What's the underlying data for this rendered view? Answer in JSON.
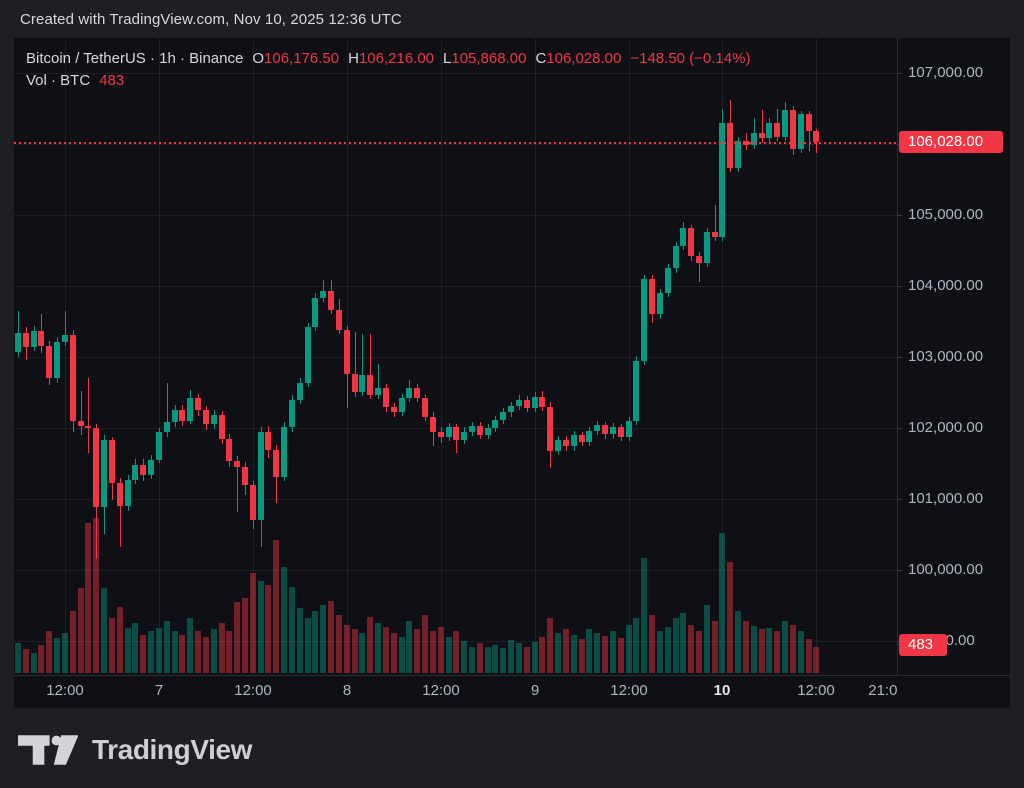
{
  "header": {
    "created_text": "Created with TradingView.com, Nov 10, 2025 12:36 UTC"
  },
  "legend": {
    "symbol_title": "Bitcoin / TetherUS · 1h · Binance",
    "o_label": "O",
    "o_val": "106,176.50",
    "h_label": "H",
    "h_val": "106,216.00",
    "l_label": "L",
    "l_val": "105,868.00",
    "c_label": "C",
    "c_val": "106,028.00",
    "change": "−148.50 (−0.14%)",
    "vol_label": "Vol · BTC",
    "vol_val": "483"
  },
  "badges": {
    "last_price": "106,028.00",
    "volume": "483"
  },
  "footer": {
    "brand": "TradingView"
  },
  "colors": {
    "up": "#089981",
    "down": "#f23645",
    "vol_up": "rgba(8,153,129,0.45)",
    "vol_down": "rgba(242,54,69,0.45)",
    "badge_bg": "#f23645",
    "axis_text": "#b2b5be",
    "chart_bg": "#0e1015",
    "page_bg": "#1e1f24"
  },
  "price_axis": {
    "labels": [
      {
        "price": 107000,
        "text": "107,000.00"
      },
      {
        "price": 106000,
        "text": "106,000.00"
      },
      {
        "price": 105000,
        "text": "105,000.00"
      },
      {
        "price": 104000,
        "text": "104,000.00"
      },
      {
        "price": 103000,
        "text": "103,000.00"
      },
      {
        "price": 102000,
        "text": "102,000.00"
      },
      {
        "price": 101000,
        "text": "101,000.00"
      },
      {
        "price": 100000,
        "text": "100,000.00"
      },
      {
        "price": 99000,
        "text": "99,000.00"
      }
    ]
  },
  "time_axis": {
    "ticks": [
      {
        "i": 6,
        "label": "12:00",
        "bold": false,
        "grid": true
      },
      {
        "i": 18,
        "label": "7",
        "bold": false,
        "grid": true
      },
      {
        "i": 30,
        "label": "12:00",
        "bold": false,
        "grid": true
      },
      {
        "i": 42,
        "label": "8",
        "bold": false,
        "grid": true
      },
      {
        "i": 54,
        "label": "12:00",
        "bold": false,
        "grid": true
      },
      {
        "i": 66,
        "label": "9",
        "bold": false,
        "grid": true
      },
      {
        "i": 78,
        "label": "12:00",
        "bold": false,
        "grid": true
      },
      {
        "i": 90,
        "label": "10",
        "bold": true,
        "grid": true
      },
      {
        "i": 102,
        "label": "12:00",
        "bold": false,
        "grid": true
      },
      {
        "i": 111,
        "label": "21:00",
        "bold": false,
        "grid": false
      }
    ]
  },
  "chart_data": {
    "type": "candlestick",
    "symbol": "Bitcoin / TetherUS",
    "exchange": "Binance",
    "interval": "1h",
    "last_price": 106028,
    "last_volume_btc": 483,
    "ohlc_current": {
      "open": 106176.5,
      "high": 106216,
      "low": 105868,
      "close": 106028,
      "change": -148.5,
      "change_pct": -0.14
    },
    "price_range_shown": [
      99000,
      107000
    ],
    "note": "candles = [open, high, low, close, volume_btc], hourly Nov 6 06:00 - Nov 10 12:00 UTC",
    "candles": [
      [
        103070,
        103650,
        103000,
        103340,
        558
      ],
      [
        103340,
        103420,
        102960,
        103140,
        446
      ],
      [
        103140,
        103430,
        103080,
        103360,
        372
      ],
      [
        103360,
        103600,
        103060,
        103150,
        521
      ],
      [
        103150,
        103230,
        102600,
        102700,
        781
      ],
      [
        102700,
        103280,
        102640,
        103210,
        651
      ],
      [
        103210,
        103650,
        103150,
        103310,
        744
      ],
      [
        103310,
        103380,
        101950,
        102105,
        1153
      ],
      [
        102105,
        102520,
        101900,
        102035,
        1581
      ],
      [
        102035,
        102700,
        101650,
        102000,
        2790
      ],
      [
        102000,
        102050,
        100150,
        100885,
        2883
      ],
      [
        100885,
        101900,
        100500,
        101825,
        1581
      ],
      [
        101825,
        101870,
        100980,
        101220,
        1023
      ],
      [
        101220,
        101300,
        100330,
        100900,
        1228
      ],
      [
        100900,
        101340,
        100830,
        101270,
        837
      ],
      [
        101270,
        101560,
        101210,
        101480,
        930
      ],
      [
        101480,
        101560,
        101260,
        101340,
        707
      ],
      [
        101340,
        101620,
        101280,
        101550,
        781
      ],
      [
        101550,
        102000,
        101500,
        101940,
        837
      ],
      [
        101940,
        102630,
        101880,
        102090,
        967
      ],
      [
        102090,
        102320,
        102020,
        102250,
        781
      ],
      [
        102250,
        102330,
        102030,
        102100,
        707
      ],
      [
        102100,
        102540,
        102050,
        102420,
        1023
      ],
      [
        102420,
        102480,
        102170,
        102250,
        781
      ],
      [
        102250,
        102310,
        101970,
        102050,
        670
      ],
      [
        102050,
        102250,
        101990,
        102180,
        818
      ],
      [
        102180,
        102240,
        101770,
        101850,
        930
      ],
      [
        101850,
        101910,
        101450,
        101540,
        781
      ],
      [
        101540,
        101600,
        100810,
        101450,
        1321
      ],
      [
        101450,
        101520,
        101060,
        101200,
        1395
      ],
      [
        101200,
        101260,
        100580,
        100700,
        1860
      ],
      [
        100700,
        102020,
        100330,
        101950,
        1711
      ],
      [
        101950,
        102030,
        101580,
        101690,
        1637
      ],
      [
        101690,
        101760,
        100950,
        101310,
        2474
      ],
      [
        101310,
        102080,
        101250,
        102010,
        1972
      ],
      [
        102010,
        102460,
        101950,
        102400,
        1600
      ],
      [
        102400,
        102700,
        102340,
        102640,
        1209
      ],
      [
        102640,
        103480,
        102580,
        103420,
        1023
      ],
      [
        103420,
        103900,
        103360,
        103830,
        1153
      ],
      [
        103830,
        104085,
        103770,
        103930,
        1265
      ],
      [
        103930,
        104085,
        103600,
        103660,
        1339
      ],
      [
        103660,
        103815,
        103320,
        103380,
        1079
      ],
      [
        103380,
        103440,
        102285,
        102760,
        893
      ],
      [
        102760,
        103350,
        102440,
        102500,
        818
      ],
      [
        102500,
        103330,
        102450,
        102740,
        744
      ],
      [
        102740,
        103320,
        102410,
        102470,
        1042
      ],
      [
        102470,
        102900,
        102410,
        102560,
        930
      ],
      [
        102560,
        102620,
        102230,
        102290,
        856
      ],
      [
        102290,
        102350,
        102160,
        102230,
        744
      ],
      [
        102230,
        102480,
        102170,
        102420,
        670
      ],
      [
        102420,
        102680,
        102360,
        102560,
        967
      ],
      [
        102560,
        102620,
        102360,
        102420,
        818
      ],
      [
        102420,
        102470,
        102100,
        102160,
        1079
      ],
      [
        102160,
        102220,
        101740,
        101950,
        781
      ],
      [
        101950,
        102010,
        101790,
        101870,
        856
      ],
      [
        101870,
        102070,
        101810,
        102010,
        670
      ],
      [
        102010,
        102060,
        101650,
        101830,
        781
      ],
      [
        101830,
        102010,
        101770,
        101950,
        595
      ],
      [
        101950,
        102090,
        101890,
        102030,
        484
      ],
      [
        102030,
        102080,
        101840,
        101900,
        558
      ],
      [
        101900,
        102060,
        101840,
        102000,
        484
      ],
      [
        102000,
        102170,
        101940,
        102110,
        521
      ],
      [
        102110,
        102280,
        102050,
        102220,
        465
      ],
      [
        102220,
        102370,
        102160,
        102310,
        614
      ],
      [
        102310,
        102460,
        102250,
        102400,
        558
      ],
      [
        102400,
        102450,
        102220,
        102280,
        484
      ],
      [
        102280,
        102500,
        102220,
        102430,
        577
      ],
      [
        102430,
        102520,
        102240,
        102300,
        670
      ],
      [
        102300,
        102360,
        101440,
        101680,
        1023
      ],
      [
        101680,
        101890,
        101620,
        101830,
        744
      ],
      [
        101830,
        101890,
        101680,
        101740,
        818
      ],
      [
        101740,
        101960,
        101680,
        101900,
        707
      ],
      [
        101900,
        101950,
        101740,
        101800,
        632
      ],
      [
        101800,
        102020,
        101740,
        101960,
        818
      ],
      [
        101960,
        102100,
        101900,
        102040,
        744
      ],
      [
        102040,
        102090,
        101850,
        101910,
        688
      ],
      [
        101910,
        102070,
        101850,
        102010,
        781
      ],
      [
        102010,
        102060,
        101820,
        101880,
        651
      ],
      [
        101880,
        102160,
        101820,
        102100,
        893
      ],
      [
        102100,
        103010,
        102040,
        102950,
        1023
      ],
      [
        102950,
        104160,
        102890,
        104100,
        2139
      ],
      [
        104100,
        104150,
        103480,
        103600,
        1079
      ],
      [
        103600,
        103960,
        103540,
        103900,
        781
      ],
      [
        103900,
        104310,
        103840,
        104250,
        856
      ],
      [
        104250,
        104620,
        104190,
        104560,
        1023
      ],
      [
        104560,
        104900,
        104500,
        104810,
        1116
      ],
      [
        104810,
        104860,
        104350,
        104420,
        893
      ],
      [
        104420,
        104480,
        104060,
        104330,
        781
      ],
      [
        104330,
        104820,
        104270,
        104760,
        1265
      ],
      [
        104760,
        105140,
        104630,
        104690,
        967
      ],
      [
        104690,
        106500,
        104640,
        106295,
        2604
      ],
      [
        106295,
        106620,
        105600,
        105660,
        2065
      ],
      [
        105660,
        106100,
        105600,
        106040,
        1153
      ],
      [
        106040,
        106160,
        105920,
        105985,
        967
      ],
      [
        105985,
        106370,
        105930,
        106155,
        874
      ],
      [
        106155,
        106480,
        106020,
        106080,
        818
      ],
      [
        106080,
        106360,
        106020,
        106300,
        837
      ],
      [
        106300,
        106490,
        106040,
        106100,
        781
      ],
      [
        106100,
        106590,
        106040,
        106480,
        967
      ],
      [
        106480,
        106530,
        105840,
        105930,
        893
      ],
      [
        105930,
        106470,
        105870,
        106420,
        781
      ],
      [
        106420,
        106470,
        105900,
        106176.5,
        632
      ],
      [
        106176.5,
        106216,
        105868,
        106028,
        483
      ]
    ]
  }
}
